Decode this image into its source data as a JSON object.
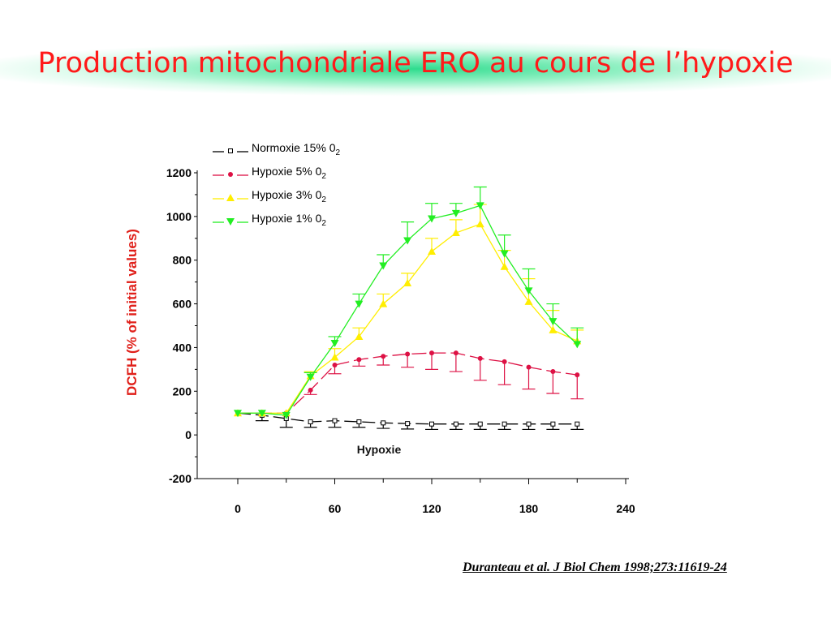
{
  "slide": {
    "title": "Production mitochondriale ERO au cours de l’hypoxie",
    "citation": "Duranteau et al. J Biol Chem 1998;273:11619-24"
  },
  "chart_data": {
    "type": "line",
    "ylabel": "DCFH (% of initial values)",
    "annotation": "Hypoxie",
    "xlim": [
      0,
      240
    ],
    "ylim": [
      -200,
      1200
    ],
    "x_ticks": [
      0,
      60,
      120,
      180,
      240
    ],
    "y_ticks": [
      -200,
      0,
      200,
      400,
      600,
      800,
      1000,
      1200
    ],
    "legend_position": "top-left",
    "series": [
      {
        "name_main": "Normoxie 15% 0",
        "name_sub": "2",
        "color": "#000000",
        "marker": "square-open",
        "x": [
          0,
          15,
          30,
          45,
          60,
          75,
          90,
          105,
          120,
          135,
          150,
          165,
          180,
          195,
          210
        ],
        "y": [
          100,
          90,
          75,
          60,
          65,
          60,
          55,
          52,
          50,
          50,
          50,
          50,
          50,
          50,
          50
        ],
        "err": [
          0,
          25,
          40,
          25,
          30,
          25,
          25,
          25,
          25,
          25,
          25,
          25,
          25,
          25,
          25
        ]
      },
      {
        "name_main": "Hypoxie 5% 0",
        "name_sub": "2",
        "color": "#dd1144",
        "marker": "circle",
        "x": [
          0,
          15,
          30,
          45,
          60,
          75,
          90,
          105,
          120,
          135,
          150,
          165,
          180,
          195,
          210
        ],
        "y": [
          100,
          100,
          100,
          205,
          320,
          345,
          360,
          370,
          375,
          375,
          350,
          335,
          310,
          290,
          275
        ],
        "err": [
          0,
          0,
          0,
          20,
          40,
          30,
          40,
          60,
          75,
          85,
          100,
          105,
          100,
          100,
          110
        ]
      },
      {
        "name_main": "Hypoxie 3% 0",
        "name_sub": "2",
        "color": "#ffee00",
        "marker": "triangle-up",
        "x": [
          0,
          15,
          30,
          45,
          60,
          75,
          90,
          105,
          120,
          135,
          150,
          165,
          180,
          195,
          210
        ],
        "y": [
          100,
          100,
          100,
          270,
          355,
          450,
          600,
          695,
          840,
          925,
          965,
          770,
          610,
          480,
          430
        ],
        "err": [
          0,
          0,
          0,
          20,
          40,
          40,
          45,
          45,
          60,
          60,
          90,
          75,
          105,
          90,
          50
        ]
      },
      {
        "name_main": "Hypoxie 1% 0",
        "name_sub": "2",
        "color": "#22ee22",
        "marker": "triangle-down",
        "x": [
          0,
          15,
          30,
          45,
          60,
          75,
          90,
          105,
          120,
          135,
          150,
          165,
          180,
          195,
          210
        ],
        "y": [
          100,
          100,
          90,
          265,
          420,
          600,
          775,
          890,
          990,
          1015,
          1050,
          830,
          660,
          520,
          415
        ],
        "err": [
          0,
          0,
          0,
          20,
          30,
          45,
          50,
          85,
          70,
          45,
          85,
          85,
          100,
          80,
          75
        ]
      }
    ]
  }
}
